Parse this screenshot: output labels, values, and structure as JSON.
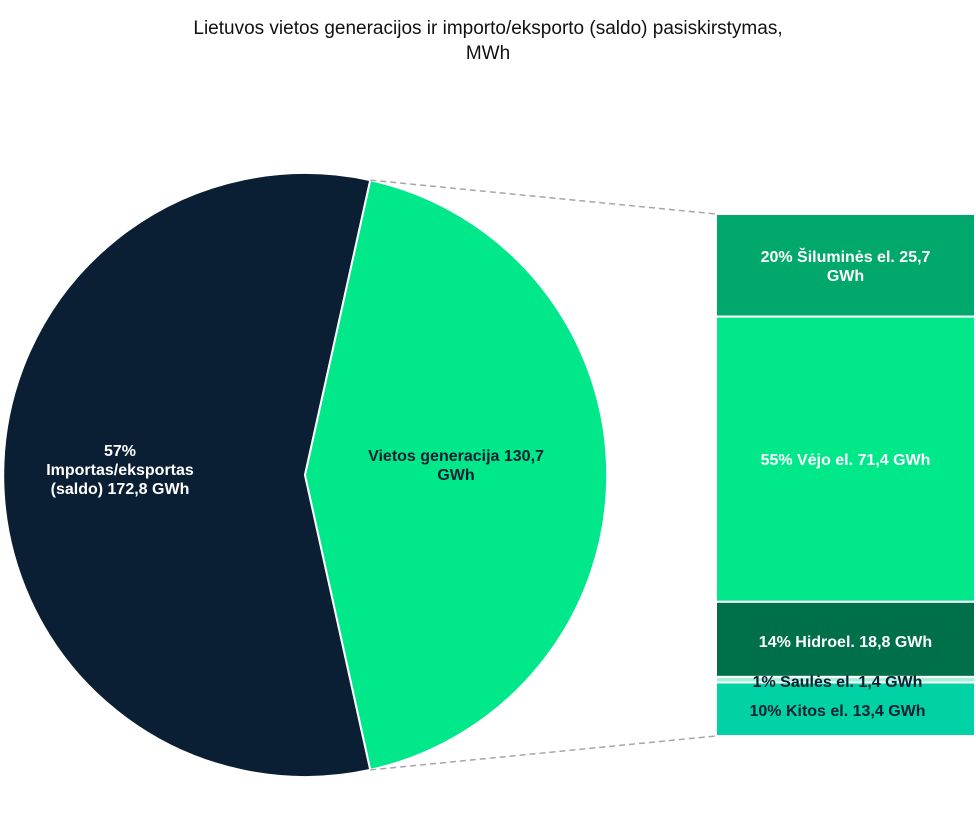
{
  "chart_data": {
    "type": "pie",
    "title_line1": "Lietuvos vietos generacijos ir importo/eksporto (saldo) pasiskirstymas,",
    "title_line2": "MWh",
    "main_slices": [
      {
        "key": "import",
        "value": 172.8,
        "color": "#0a1f33",
        "label_lines": [
          "57%",
          "Importas/eksportas",
          "(saldo)  172,8 GWh"
        ]
      },
      {
        "key": "local",
        "value": 130.7,
        "color": "#00e88a",
        "label_lines": [
          "Vietos generacija   130,7",
          "GWh"
        ]
      }
    ],
    "breakdown": [
      {
        "key": "thermal",
        "value": 25.7,
        "color": "#00a96b",
        "label_lines": [
          "20% Šiluminės el.  25,7",
          "GWh"
        ]
      },
      {
        "key": "wind",
        "value": 71.4,
        "color": "#00e88a",
        "label_lines": [
          "55% Vėjo el.  71,4 GWh"
        ]
      },
      {
        "key": "hydro",
        "value": 18.8,
        "color": "#00704a",
        "label_lines": [
          "14% Hidroel.  18,8 GWh"
        ]
      },
      {
        "key": "solar",
        "value": 1.4,
        "color": "#a5f0d8",
        "label_lines": [
          "1% Saulės el.  1,4 GWh"
        ]
      },
      {
        "key": "other",
        "value": 13.4,
        "color": "#00d2a6",
        "label_lines": [
          "10% Kitos el.  13,4 GWh"
        ]
      }
    ]
  }
}
